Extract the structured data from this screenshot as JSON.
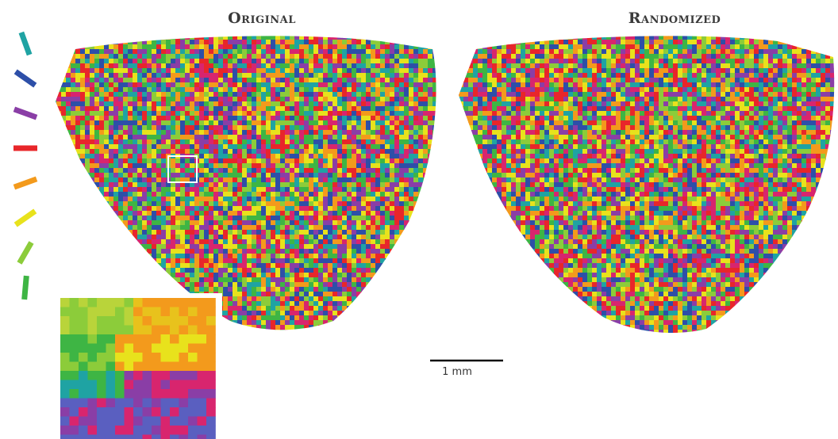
{
  "panels": {
    "left_title": "Original",
    "right_title": "Randomized"
  },
  "scale_bar": {
    "label": "1 mm"
  },
  "legend": {
    "orientation_colors": [
      "#1fa3a3",
      "#2d4fa8",
      "#8a3ea6",
      "#e8262a",
      "#f39a1c",
      "#e8e21c",
      "#8ccc3a",
      "#3eb544"
    ]
  },
  "palette": [
    "#e8262a",
    "#f39a1c",
    "#e8e21c",
    "#8ccc3a",
    "#3eb544",
    "#1fa3a3",
    "#2d4fa8",
    "#8a3ea6",
    "#d8256e"
  ]
}
